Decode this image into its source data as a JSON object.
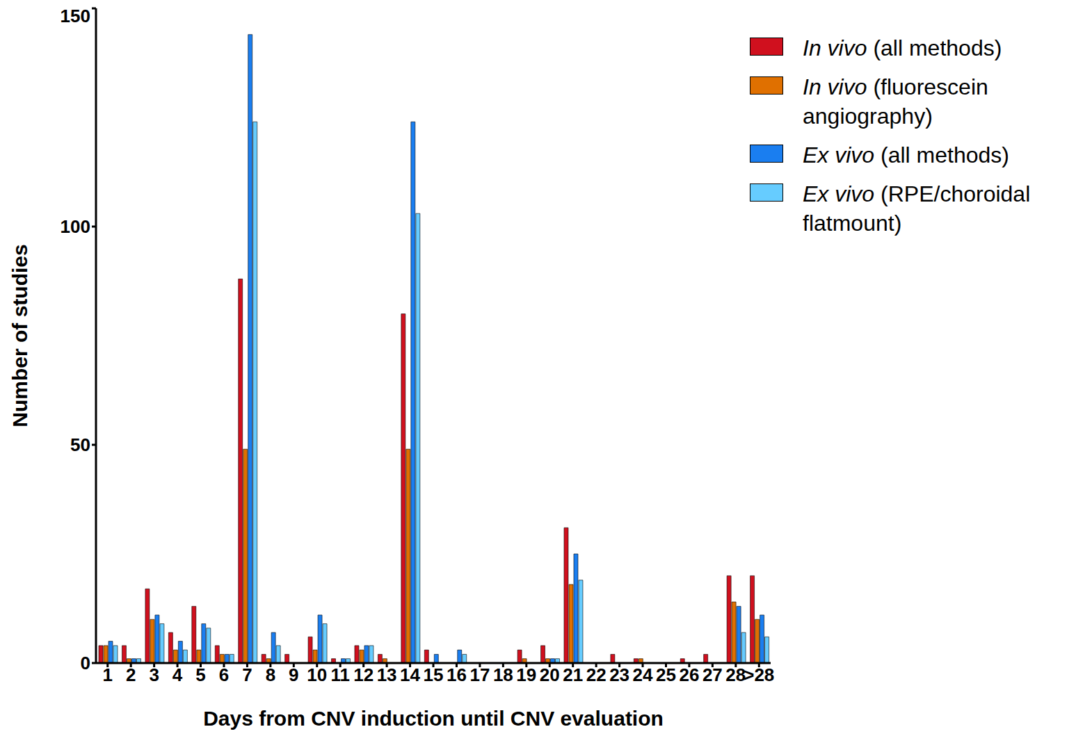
{
  "chart_data": {
    "type": "bar",
    "x_label": "Days from CNV induction until CNV evaluation",
    "y_label": "Number of studies",
    "categories": [
      "1",
      "2",
      "3",
      "4",
      "5",
      "6",
      "7",
      "8",
      "9",
      "10",
      "11",
      "12",
      "13",
      "14",
      "15",
      "16",
      "17",
      "18",
      "19",
      "20",
      "21",
      "22",
      "23",
      "24",
      "25",
      "26",
      "27",
      "28",
      ">28"
    ],
    "series": [
      {
        "name": "In vivo (all methods)",
        "color": "#d0101e",
        "values": [
          4,
          4,
          17,
          7,
          13,
          4,
          88,
          2,
          2,
          6,
          1,
          4,
          2,
          80,
          3,
          0,
          0,
          0,
          3,
          4,
          31,
          0,
          2,
          1,
          0,
          1,
          2,
          20,
          20
        ]
      },
      {
        "name": "In vivo (fluorescein angiography)",
        "color": "#e07000",
        "values": [
          4,
          1,
          10,
          3,
          3,
          2,
          49,
          1,
          0,
          3,
          0,
          3,
          1,
          49,
          0,
          0,
          0,
          0,
          1,
          1,
          18,
          0,
          0,
          1,
          0,
          0,
          0,
          14,
          10
        ]
      },
      {
        "name": "Ex vivo (all methods)",
        "color": "#1a7ef0",
        "values": [
          5,
          1,
          11,
          5,
          9,
          2,
          144,
          7,
          0,
          11,
          1,
          4,
          0,
          124,
          2,
          3,
          0,
          0,
          0,
          1,
          25,
          0,
          0,
          0,
          0,
          0,
          0,
          13,
          11
        ]
      },
      {
        "name": "Ex vivo (RPE/choroidal flatmount)",
        "color": "#66ccff",
        "values": [
          4,
          1,
          9,
          3,
          8,
          2,
          124,
          4,
          0,
          9,
          1,
          4,
          0,
          103,
          0,
          2,
          0,
          0,
          0,
          1,
          19,
          0,
          0,
          0,
          0,
          0,
          0,
          7,
          6
        ]
      }
    ],
    "ylim": [
      0,
      150
    ],
    "yticks": [
      0,
      50,
      100,
      150
    ],
    "grid": false,
    "legend": "upper right"
  }
}
